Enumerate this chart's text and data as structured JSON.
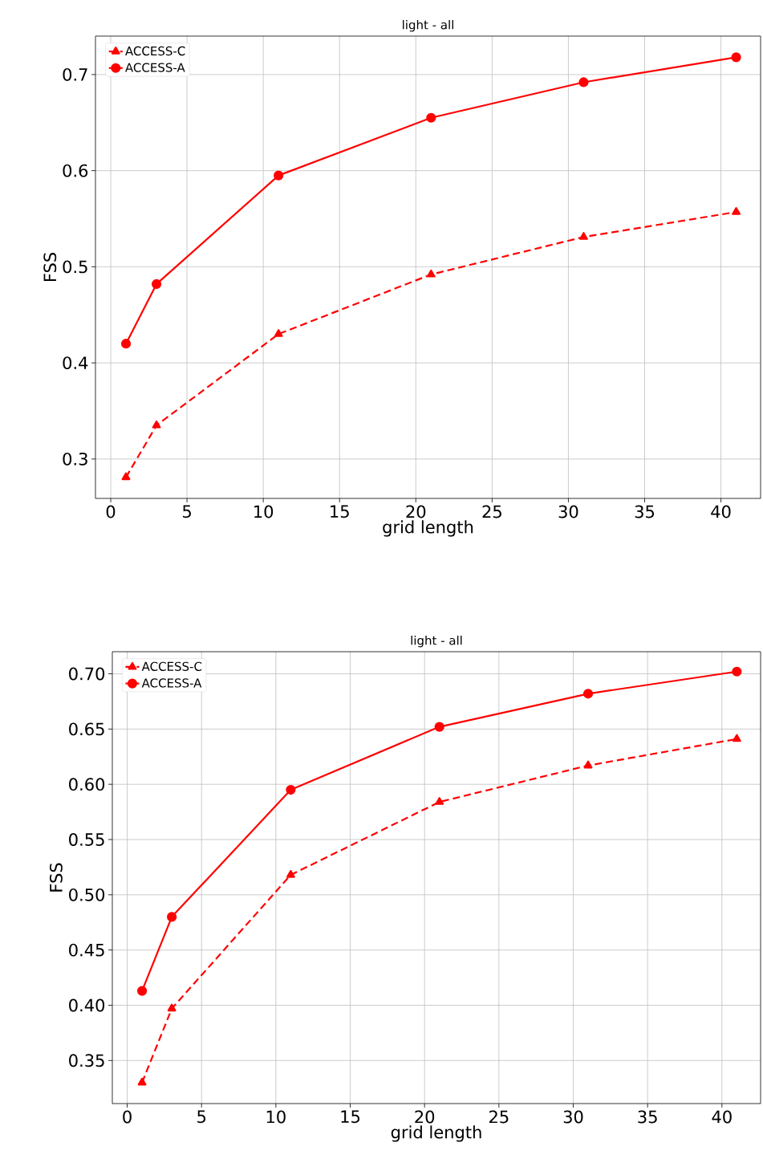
{
  "chart_data": [
    {
      "type": "line",
      "title": "light - all",
      "xlabel": "grid length",
      "ylabel": "FSS",
      "x": [
        1,
        3,
        11,
        21,
        31,
        41
      ],
      "series": [
        {
          "name": "ACCESS-C",
          "color": "#ff0000",
          "marker": "triangle",
          "line_style": "dashed",
          "values": [
            0.281,
            0.335,
            0.43,
            0.492,
            0.531,
            0.557
          ]
        },
        {
          "name": "ACCESS-A",
          "color": "#ff0000",
          "marker": "circle",
          "line_style": "solid",
          "values": [
            0.42,
            0.482,
            0.595,
            0.655,
            0.692,
            0.718
          ]
        }
      ],
      "xlim": [
        -1,
        42.6
      ],
      "ylim": [
        0.259,
        0.74
      ],
      "xticks": [
        0,
        5,
        10,
        15,
        20,
        25,
        30,
        35,
        40
      ],
      "yticks": [
        0.3,
        0.4,
        0.5,
        0.6,
        0.7
      ],
      "grid": true,
      "legend": "top left"
    },
    {
      "type": "line",
      "title": "light - all",
      "xlabel": "grid length",
      "ylabel": "FSS",
      "x": [
        1,
        3,
        11,
        21,
        31,
        41
      ],
      "series": [
        {
          "name": "ACCESS-C",
          "color": "#ff0000",
          "marker": "triangle",
          "line_style": "dashed",
          "values": [
            0.33,
            0.397,
            0.518,
            0.584,
            0.617,
            0.641
          ]
        },
        {
          "name": "ACCESS-A",
          "color": "#ff0000",
          "marker": "circle",
          "line_style": "solid",
          "values": [
            0.413,
            0.48,
            0.595,
            0.652,
            0.682,
            0.702
          ]
        }
      ],
      "xlim": [
        -1,
        42.6
      ],
      "ylim": [
        0.311,
        0.72
      ],
      "xticks": [
        0,
        5,
        10,
        15,
        20,
        25,
        30,
        35,
        40
      ],
      "yticks": [
        {
          "value": 0.35,
          "label": "0.35"
        },
        {
          "value": 0.4,
          "label": "0.40"
        },
        {
          "value": 0.45,
          "label": "0.45"
        },
        {
          "value": 0.5,
          "label": "0.50"
        },
        {
          "value": 0.55,
          "label": "0.55"
        },
        {
          "value": 0.6,
          "label": "0.60"
        },
        {
          "value": 0.65,
          "label": "0.65"
        },
        {
          "value": 0.7,
          "label": "0.70"
        }
      ],
      "grid": true,
      "legend": "top left"
    }
  ]
}
